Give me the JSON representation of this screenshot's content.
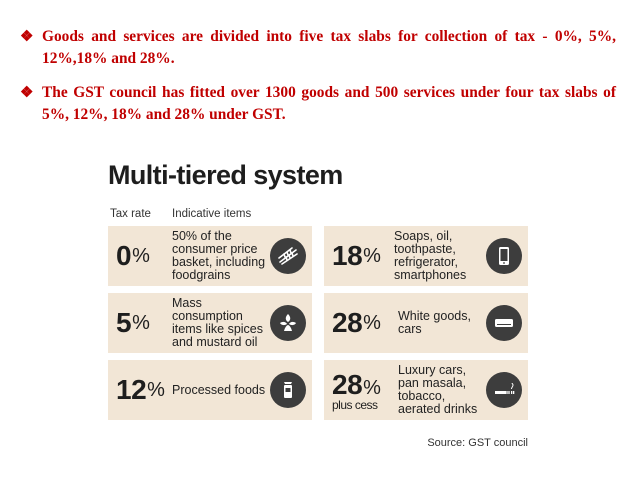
{
  "bullets": [
    {
      "text": "Goods and services are divided into five tax slabs for collection of tax - 0%, 5%, 12%,18% and 28%."
    },
    {
      "text": "The GST council has fitted over 1300 goods and 500 services under four tax slabs of 5%, 12%, 18% and 28% under GST."
    }
  ],
  "figure": {
    "title": "Multi-tiered system",
    "col_rate": "Tax rate",
    "col_items": "Indicative items",
    "source": "Source: GST council",
    "cards": [
      {
        "rate": "0",
        "pct": "%",
        "sub": "",
        "desc": "50% of the consumer price basket, including foodgrains",
        "icon": "wheat-icon"
      },
      {
        "rate": "18",
        "pct": "%",
        "sub": "",
        "desc": "Soaps, oil, toothpaste, refrigerator, smartphones",
        "icon": "smartphone-icon"
      },
      {
        "rate": "5",
        "pct": "%",
        "sub": "",
        "desc": "Mass consumption items like spices and mustard oil",
        "icon": "spices-icon"
      },
      {
        "rate": "28",
        "pct": "%",
        "sub": "",
        "desc": "White goods, cars",
        "icon": "air-conditioner-icon"
      },
      {
        "rate": "12",
        "pct": "%",
        "sub": "",
        "desc": "Processed foods",
        "icon": "packaged-food-icon"
      },
      {
        "rate": "28",
        "pct": "%",
        "sub": "plus cess",
        "desc": "Luxury cars, pan masala, tobacco, aerated drinks",
        "icon": "cigarette-icon"
      }
    ]
  },
  "colors": {
    "bullet_text": "#c00000",
    "card_bg": "#f2e6d6",
    "icon_bg": "#3d3d3d"
  }
}
